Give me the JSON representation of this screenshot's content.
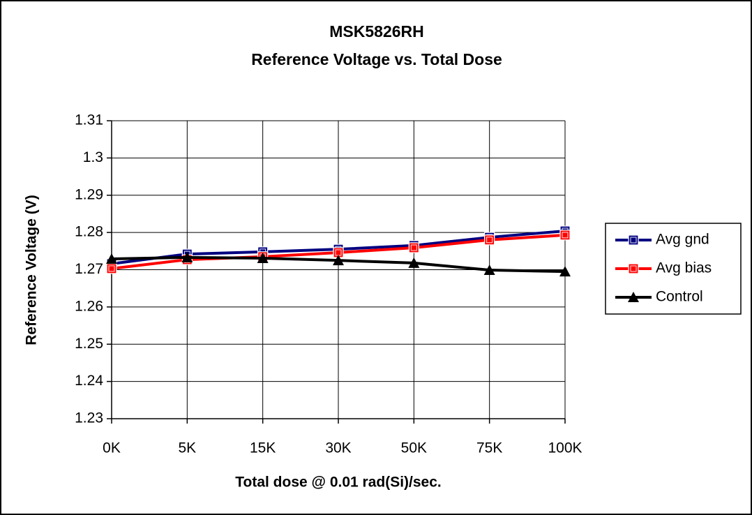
{
  "chart_data": {
    "type": "line",
    "title": "MSK5826RH",
    "subtitle": "Reference Voltage vs. Total Dose",
    "x_label": "Total dose @ 0.01 rad(Si)/sec.",
    "y_label": "Reference Voltage (V)",
    "categories": [
      "0K",
      "5K",
      "15K",
      "30K",
      "50K",
      "75K",
      "100K"
    ],
    "series": [
      {
        "name": "Avg gnd",
        "color": "#000080",
        "marker": "square",
        "values": [
          1.2716,
          1.2742,
          1.2748,
          1.2755,
          1.2765,
          1.2787,
          1.2804
        ]
      },
      {
        "name": "Avg bias",
        "color": "#ff0000",
        "marker": "square",
        "values": [
          1.2703,
          1.2727,
          1.2735,
          1.2746,
          1.2759,
          1.278,
          1.2793
        ]
      },
      {
        "name": "Control",
        "color": "#000000",
        "marker": "triangle",
        "values": [
          1.2729,
          1.2733,
          1.2731,
          1.2725,
          1.2718,
          1.2699,
          1.2695
        ]
      }
    ],
    "ylim": [
      1.23,
      1.31
    ],
    "yticks": [
      1.23,
      1.24,
      1.25,
      1.26,
      1.27,
      1.28,
      1.29,
      1.3,
      1.31
    ],
    "grid": true,
    "legend": "right"
  }
}
